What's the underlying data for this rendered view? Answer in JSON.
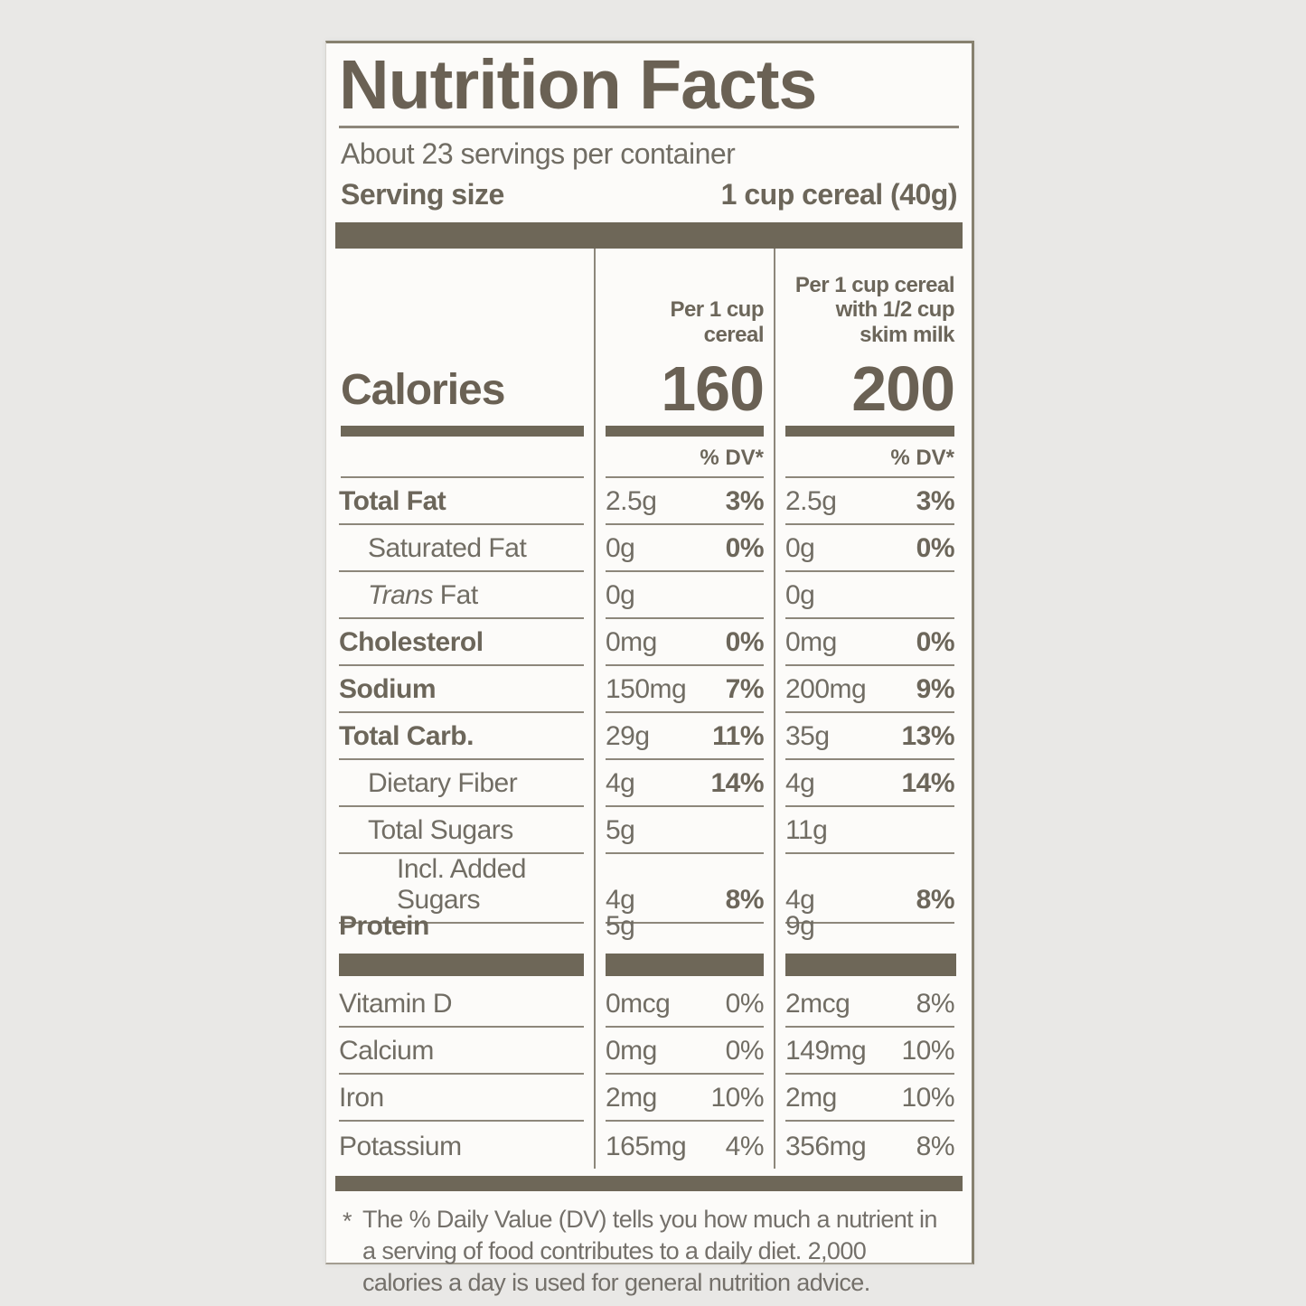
{
  "colors": {
    "ink": "#6a6154",
    "text": "#716d64",
    "bar": "#6e6758",
    "line": "#8d877b",
    "label_bg": "#fcfbf9",
    "page_bg": "#e9e8e6"
  },
  "header": {
    "title": "Nutrition Facts",
    "servings_per_container": "About 23 servings per container",
    "serving_size_label": "Serving size",
    "serving_size_value": "1 cup cereal (40g)"
  },
  "calories": {
    "label": "Calories",
    "col1_header": "Per 1 cup cereal",
    "col2_header_line1": "Per 1 cup cereal",
    "col2_header_line2": "with 1/2 cup skim milk",
    "col1_value": "160",
    "col2_value": "200",
    "dv_header": "% DV*"
  },
  "nutrient_rows": [
    {
      "label": "Total Fat",
      "bold": true,
      "indent": 0,
      "col1_amount": "2.5g",
      "col1_dv": "3%",
      "col2_amount": "2.5g",
      "col2_dv": "3%"
    },
    {
      "label": "Saturated Fat",
      "bold": false,
      "indent": 1,
      "col1_amount": "0g",
      "col1_dv": "0%",
      "col2_amount": "0g",
      "col2_dv": "0%"
    },
    {
      "label_italic": "Trans",
      "label": " Fat",
      "bold": false,
      "indent": 1,
      "col1_amount": "0g",
      "col1_dv": "",
      "col2_amount": "0g",
      "col2_dv": ""
    },
    {
      "label": "Cholesterol",
      "bold": true,
      "indent": 0,
      "col1_amount": "0mg",
      "col1_dv": "0%",
      "col2_amount": "0mg",
      "col2_dv": "0%"
    },
    {
      "label": "Sodium",
      "bold": true,
      "indent": 0,
      "col1_amount": "150mg",
      "col1_dv": "7%",
      "col2_amount": "200mg",
      "col2_dv": "9%"
    },
    {
      "label": "Total Carb.",
      "bold": true,
      "indent": 0,
      "col1_amount": "29g",
      "col1_dv": "11%",
      "col2_amount": "35g",
      "col2_dv": "13%"
    },
    {
      "label": "Dietary Fiber",
      "bold": false,
      "indent": 1,
      "col1_amount": "4g",
      "col1_dv": "14%",
      "col2_amount": "4g",
      "col2_dv": "14%"
    },
    {
      "label": "Total Sugars",
      "bold": false,
      "indent": 1,
      "col1_amount": "5g",
      "col1_dv": "",
      "col2_amount": "11g",
      "col2_dv": ""
    },
    {
      "label": "Incl. Added Sugars",
      "bold": false,
      "indent": 2,
      "col1_amount": "4g",
      "col1_dv": "8%",
      "col2_amount": "4g",
      "col2_dv": "8%"
    },
    {
      "label": "Protein",
      "bold": true,
      "indent": 0,
      "col1_amount": "5g",
      "col1_dv": "",
      "col2_amount": "9g",
      "col2_dv": "",
      "no_underline": true
    }
  ],
  "micronutrient_rows": [
    {
      "label": "Vitamin D",
      "col1_amount": "0mcg",
      "col1_dv": "0%",
      "col2_amount": "2mcg",
      "col2_dv": "8%"
    },
    {
      "label": "Calcium",
      "col1_amount": "0mg",
      "col1_dv": "0%",
      "col2_amount": "149mg",
      "col2_dv": "10%"
    },
    {
      "label": "Iron",
      "col1_amount": "2mg",
      "col1_dv": "10%",
      "col2_amount": "2mg",
      "col2_dv": "10%"
    },
    {
      "label": "Potassium",
      "col1_amount": "165mg",
      "col1_dv": "4%",
      "col2_amount": "356mg",
      "col2_dv": "8%",
      "no_underline": true
    }
  ],
  "footnote": {
    "marker": "*",
    "text": "The % Daily Value (DV) tells you how much a nutrient in a serving of food contributes to a daily diet. 2,000 calories a day is used for general nutrition advice."
  }
}
